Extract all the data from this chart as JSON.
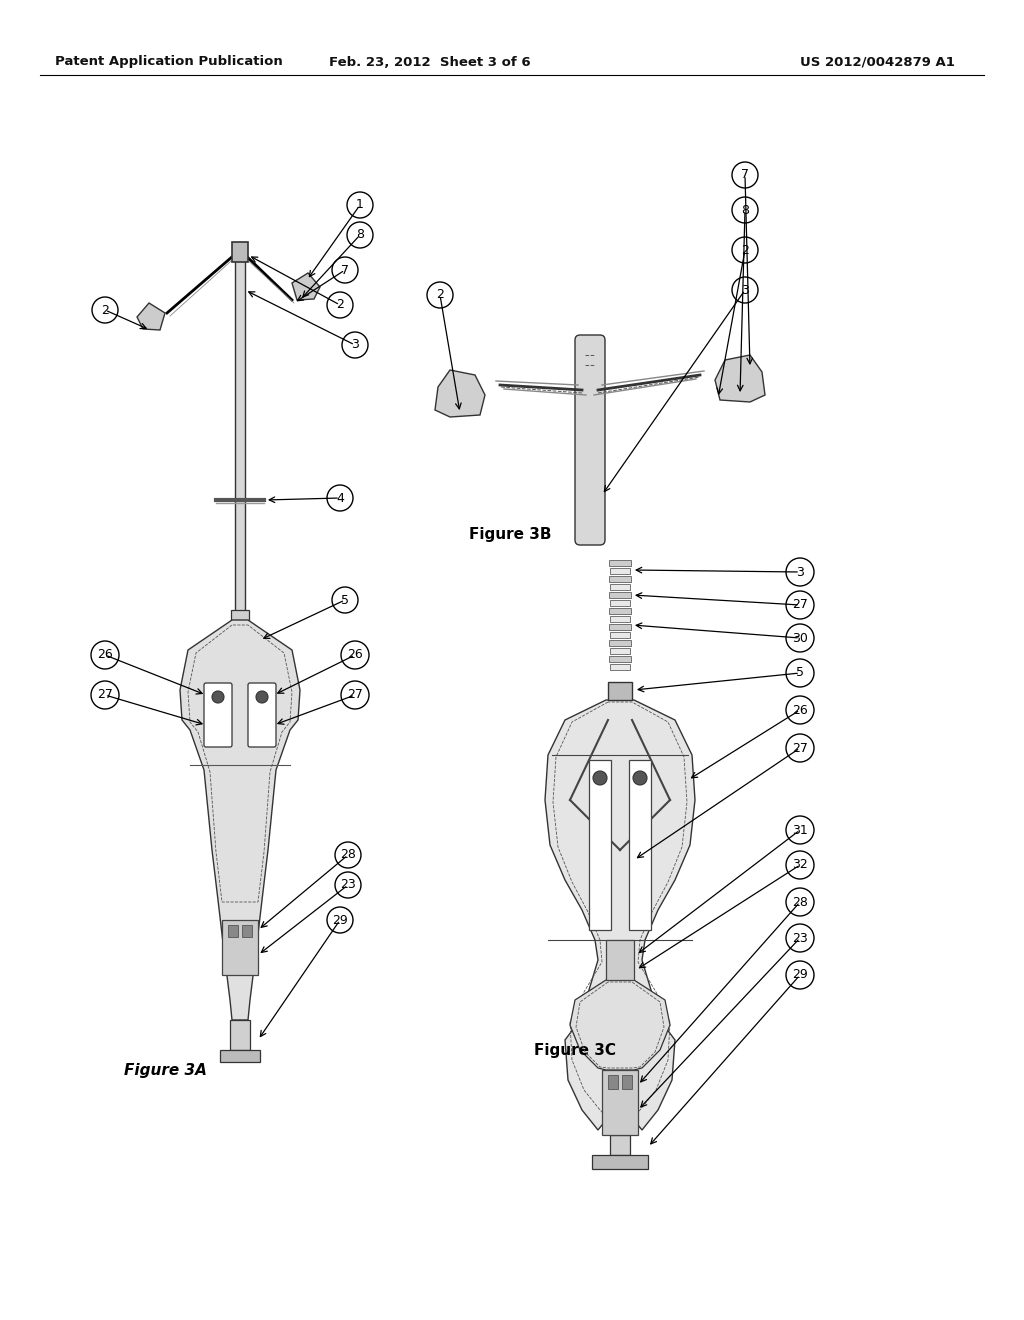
{
  "bg_color": "#ffffff",
  "header_left": "Patent Application Publication",
  "header_mid": "Feb. 23, 2012  Sheet 3 of 6",
  "header_right": "US 2012/0042879 A1",
  "fig3A_label": "Figure 3A",
  "fig3B_label": "Figure 3B",
  "fig3C_label": "Figure 3C"
}
